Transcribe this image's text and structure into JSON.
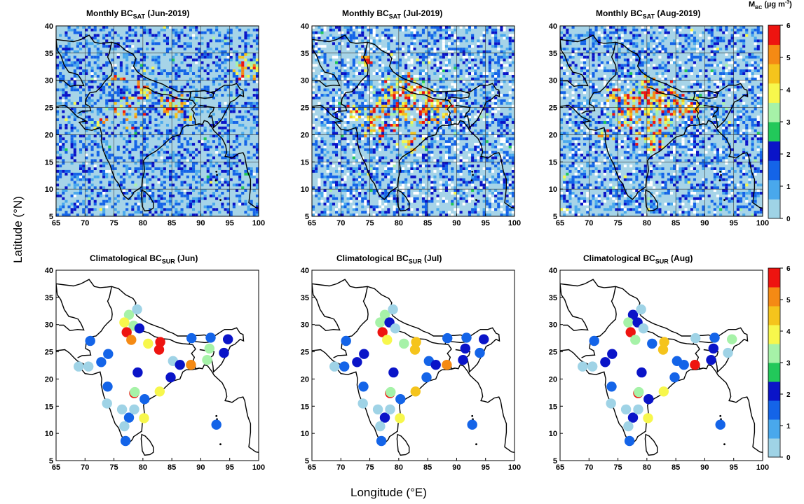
{
  "figure": {
    "ylabel": "Latitude (°N)",
    "xlabel": "Longitude (°E)",
    "colorbar_unit_main": "M",
    "colorbar_unit_sub": "BC",
    "colorbar_unit_rest": " (µg m",
    "colorbar_unit_sup": "-3",
    "colorbar_unit_close": ")"
  },
  "colorbar": {
    "ticks": [
      "0",
      "1",
      "2",
      "3",
      "4",
      "5",
      "6"
    ],
    "colors": [
      "#9fd3e6",
      "#49a8ec",
      "#1464e8",
      "#0a14c8",
      "#22c85a",
      "#a6f2a8",
      "#f7f74c",
      "#f5c41c",
      "#f58a14",
      "#ee1410"
    ]
  },
  "panels_top": [
    {
      "title_pre": "Monthly BC",
      "title_sub": "SAT",
      "title_post": " (Jun-2019)"
    },
    {
      "title_pre": "Monthly BC",
      "title_sub": "SAT",
      "title_post": " (Jul-2019)"
    },
    {
      "title_pre": "Monthly BC",
      "title_sub": "SAT",
      "title_post": " (Aug-2019)"
    }
  ],
  "panels_bottom": [
    {
      "title_pre": "Climatological BC",
      "title_sub": "SUR",
      "title_post": " (Jun)"
    },
    {
      "title_pre": "Climatological BC",
      "title_sub": "SUR",
      "title_post": " (Jul)"
    },
    {
      "title_pre": "Climatological BC",
      "title_sub": "SUR",
      "title_post": " (Aug)"
    }
  ],
  "axes": {
    "xticks": [
      "65",
      "70",
      "75",
      "80",
      "85",
      "90",
      "95",
      "100"
    ],
    "yticks": [
      "5",
      "10",
      "15",
      "20",
      "25",
      "30",
      "35",
      "40"
    ],
    "xlim": [
      65,
      100
    ],
    "ylim": [
      5,
      40
    ]
  },
  "chart_data": [
    {
      "type": "scatter",
      "panel": "Climatological BC_SUR (Jun)",
      "points": [
        {
          "lon": 77.6,
          "lat": 31.8,
          "v": 3.2
        },
        {
          "lon": 79.0,
          "lat": 32.8,
          "v": 0.4
        },
        {
          "lon": 76.8,
          "lat": 30.4,
          "v": 4.1
        },
        {
          "lon": 78.4,
          "lat": 29.8,
          "v": 3.4
        },
        {
          "lon": 77.2,
          "lat": 28.6,
          "v": 5.9
        },
        {
          "lon": 79.4,
          "lat": 29.3,
          "v": 1.8
        },
        {
          "lon": 78.0,
          "lat": 27.2,
          "v": 5.0
        },
        {
          "lon": 80.9,
          "lat": 26.5,
          "v": 4.0
        },
        {
          "lon": 83.0,
          "lat": 26.8,
          "v": 5.8
        },
        {
          "lon": 82.8,
          "lat": 25.4,
          "v": 5.9
        },
        {
          "lon": 85.2,
          "lat": 23.3,
          "v": 0.4
        },
        {
          "lon": 86.4,
          "lat": 22.6,
          "v": 1.8
        },
        {
          "lon": 88.3,
          "lat": 22.6,
          "v": 5.1
        },
        {
          "lon": 88.4,
          "lat": 27.5,
          "v": 1.5
        },
        {
          "lon": 91.7,
          "lat": 27.6,
          "v": 1.3
        },
        {
          "lon": 91.5,
          "lat": 25.6,
          "v": 3.0
        },
        {
          "lon": 91.1,
          "lat": 23.5,
          "v": 3.1
        },
        {
          "lon": 94.0,
          "lat": 24.8,
          "v": 1.8
        },
        {
          "lon": 94.7,
          "lat": 27.3,
          "v": 1.8
        },
        {
          "lon": 84.8,
          "lat": 20.3,
          "v": 1.8
        },
        {
          "lon": 79.1,
          "lat": 21.2,
          "v": 2.0
        },
        {
          "lon": 82.9,
          "lat": 17.7,
          "v": 4.0
        },
        {
          "lon": 78.5,
          "lat": 17.4,
          "v": 5.8
        },
        {
          "lon": 78.6,
          "lat": 17.6,
          "v": 3.1
        },
        {
          "lon": 80.3,
          "lat": 16.3,
          "v": 1.4
        },
        {
          "lon": 80.2,
          "lat": 12.8,
          "v": 3.6
        },
        {
          "lon": 77.6,
          "lat": 12.9,
          "v": 1.4
        },
        {
          "lon": 76.4,
          "lat": 14.4,
          "v": 0.4
        },
        {
          "lon": 78.5,
          "lat": 14.4,
          "v": 0.4
        },
        {
          "lon": 76.8,
          "lat": 11.3,
          "v": 0.4
        },
        {
          "lon": 77.0,
          "lat": 8.6,
          "v": 1.4
        },
        {
          "lon": 73.8,
          "lat": 15.5,
          "v": 0.4
        },
        {
          "lon": 73.9,
          "lat": 18.6,
          "v": 1.3
        },
        {
          "lon": 72.8,
          "lat": 23.1,
          "v": 1.3
        },
        {
          "lon": 74.0,
          "lat": 24.6,
          "v": 1.3
        },
        {
          "lon": 70.9,
          "lat": 27.0,
          "v": 1.4
        },
        {
          "lon": 68.9,
          "lat": 22.3,
          "v": 0.4
        },
        {
          "lon": 70.6,
          "lat": 22.3,
          "v": 0.4
        },
        {
          "lon": 92.7,
          "lat": 11.6,
          "v": 1.3
        }
      ]
    },
    {
      "type": "scatter",
      "panel": "Climatological BC_SUR (Jul)",
      "points": [
        {
          "lon": 77.6,
          "lat": 31.8,
          "v": 3.2
        },
        {
          "lon": 79.0,
          "lat": 32.8,
          "v": 0.4
        },
        {
          "lon": 76.8,
          "lat": 30.4,
          "v": 3.4
        },
        {
          "lon": 78.4,
          "lat": 30.4,
          "v": 1.9
        },
        {
          "lon": 77.2,
          "lat": 28.6,
          "v": 5.9
        },
        {
          "lon": 79.4,
          "lat": 29.3,
          "v": 0.4
        },
        {
          "lon": 78.0,
          "lat": 27.2,
          "v": 4.1
        },
        {
          "lon": 80.9,
          "lat": 26.5,
          "v": 3.0
        },
        {
          "lon": 83.0,
          "lat": 26.8,
          "v": 4.2
        },
        {
          "lon": 82.8,
          "lat": 25.4,
          "v": 4.6
        },
        {
          "lon": 85.2,
          "lat": 23.3,
          "v": 1.3
        },
        {
          "lon": 86.4,
          "lat": 22.6,
          "v": 1.8
        },
        {
          "lon": 88.3,
          "lat": 22.6,
          "v": 5.0
        },
        {
          "lon": 88.4,
          "lat": 27.5,
          "v": 1.3
        },
        {
          "lon": 91.7,
          "lat": 27.6,
          "v": 1.3
        },
        {
          "lon": 91.5,
          "lat": 25.6,
          "v": 1.8
        },
        {
          "lon": 91.1,
          "lat": 23.5,
          "v": 1.8
        },
        {
          "lon": 94.0,
          "lat": 24.8,
          "v": 1.3
        },
        {
          "lon": 94.7,
          "lat": 27.3,
          "v": 1.8
        },
        {
          "lon": 84.8,
          "lat": 20.3,
          "v": 1.3
        },
        {
          "lon": 79.1,
          "lat": 21.2,
          "v": 1.8
        },
        {
          "lon": 82.9,
          "lat": 17.7,
          "v": 4.6
        },
        {
          "lon": 78.5,
          "lat": 17.4,
          "v": 5.8
        },
        {
          "lon": 78.6,
          "lat": 17.6,
          "v": 3.1
        },
        {
          "lon": 80.3,
          "lat": 16.3,
          "v": 1.4
        },
        {
          "lon": 80.2,
          "lat": 12.8,
          "v": 4.0
        },
        {
          "lon": 77.6,
          "lat": 12.9,
          "v": 1.8
        },
        {
          "lon": 76.4,
          "lat": 14.4,
          "v": 0.4
        },
        {
          "lon": 78.5,
          "lat": 14.4,
          "v": 0.4
        },
        {
          "lon": 76.8,
          "lat": 11.3,
          "v": 0.4
        },
        {
          "lon": 77.0,
          "lat": 8.6,
          "v": 1.4
        },
        {
          "lon": 73.8,
          "lat": 15.5,
          "v": 0.4
        },
        {
          "lon": 73.9,
          "lat": 18.6,
          "v": 1.3
        },
        {
          "lon": 72.8,
          "lat": 23.1,
          "v": 1.8
        },
        {
          "lon": 74.0,
          "lat": 24.6,
          "v": 1.8
        },
        {
          "lon": 70.9,
          "lat": 27.0,
          "v": 1.3
        },
        {
          "lon": 68.9,
          "lat": 22.3,
          "v": 0.4
        },
        {
          "lon": 70.6,
          "lat": 22.3,
          "v": 1.3
        },
        {
          "lon": 92.7,
          "lat": 11.6,
          "v": 1.3
        }
      ]
    },
    {
      "type": "scatter",
      "panel": "Climatological BC_SUR (Aug)",
      "points": [
        {
          "lon": 77.6,
          "lat": 31.8,
          "v": 1.8
        },
        {
          "lon": 79.0,
          "lat": 32.8,
          "v": 0.4
        },
        {
          "lon": 76.8,
          "lat": 30.4,
          "v": 3.4
        },
        {
          "lon": 78.4,
          "lat": 30.4,
          "v": 1.9
        },
        {
          "lon": 77.2,
          "lat": 28.6,
          "v": 5.9
        },
        {
          "lon": 79.4,
          "lat": 29.3,
          "v": 0.4
        },
        {
          "lon": 78.0,
          "lat": 27.2,
          "v": 3.0
        },
        {
          "lon": 80.9,
          "lat": 26.5,
          "v": 1.3
        },
        {
          "lon": 83.0,
          "lat": 26.8,
          "v": 4.6
        },
        {
          "lon": 82.8,
          "lat": 25.4,
          "v": 4.6
        },
        {
          "lon": 85.2,
          "lat": 23.3,
          "v": 1.3
        },
        {
          "lon": 86.4,
          "lat": 22.6,
          "v": 1.3
        },
        {
          "lon": 88.3,
          "lat": 22.6,
          "v": 5.9
        },
        {
          "lon": 88.4,
          "lat": 27.5,
          "v": 0.4
        },
        {
          "lon": 91.7,
          "lat": 27.6,
          "v": 1.3
        },
        {
          "lon": 91.5,
          "lat": 25.6,
          "v": 1.8
        },
        {
          "lon": 91.1,
          "lat": 23.5,
          "v": 1.8
        },
        {
          "lon": 94.0,
          "lat": 24.8,
          "v": 0.4
        },
        {
          "lon": 94.7,
          "lat": 27.3,
          "v": 3.0
        },
        {
          "lon": 84.8,
          "lat": 20.3,
          "v": 1.3
        },
        {
          "lon": 79.1,
          "lat": 21.2,
          "v": 1.8
        },
        {
          "lon": 82.9,
          "lat": 17.7,
          "v": 4.0
        },
        {
          "lon": 78.5,
          "lat": 17.4,
          "v": 5.8
        },
        {
          "lon": 78.6,
          "lat": 17.6,
          "v": 3.1
        },
        {
          "lon": 80.3,
          "lat": 16.3,
          "v": 1.8
        },
        {
          "lon": 80.2,
          "lat": 12.8,
          "v": 4.0
        },
        {
          "lon": 77.6,
          "lat": 12.9,
          "v": 1.8
        },
        {
          "lon": 76.4,
          "lat": 14.4,
          "v": 0.4
        },
        {
          "lon": 78.5,
          "lat": 14.4,
          "v": 0.4
        },
        {
          "lon": 76.8,
          "lat": 11.3,
          "v": 0.4
        },
        {
          "lon": 77.0,
          "lat": 8.6,
          "v": 1.4
        },
        {
          "lon": 73.8,
          "lat": 15.5,
          "v": 0.4
        },
        {
          "lon": 73.9,
          "lat": 18.6,
          "v": 1.3
        },
        {
          "lon": 72.8,
          "lat": 23.1,
          "v": 1.8
        },
        {
          "lon": 74.0,
          "lat": 24.6,
          "v": 1.8
        },
        {
          "lon": 70.9,
          "lat": 27.0,
          "v": 1.3
        },
        {
          "lon": 68.9,
          "lat": 22.3,
          "v": 0.4
        },
        {
          "lon": 70.6,
          "lat": 22.3,
          "v": 0.4
        },
        {
          "lon": 92.7,
          "lat": 11.6,
          "v": 1.3
        }
      ]
    }
  ]
}
